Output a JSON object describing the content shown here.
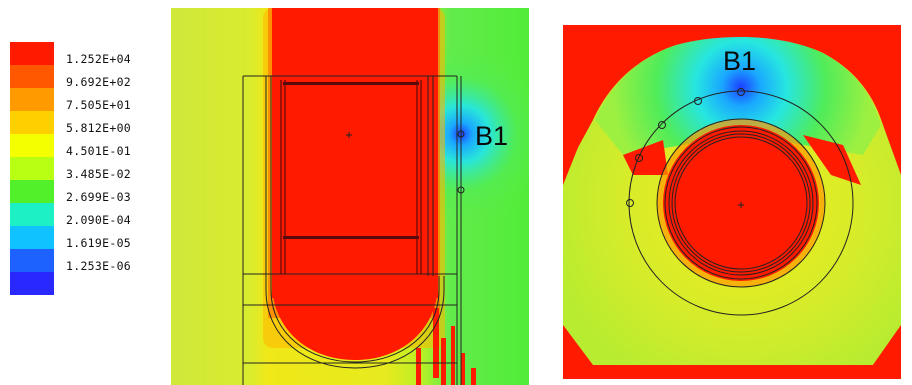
{
  "legend": {
    "colors": [
      "#ff1a00",
      "#ff5800",
      "#ff9a00",
      "#ffd000",
      "#f4ff00",
      "#b8ff14",
      "#52f02a",
      "#1cf0c4",
      "#10c2ff",
      "#1d62ff",
      "#2828ff"
    ],
    "ticks": [
      "1.252E+04",
      "9.692E+02",
      "7.505E+01",
      "5.812E+00",
      "4.501E-01",
      "3.485E-02",
      "2.699E-03",
      "2.090E-04",
      "1.619E-05",
      "1.253E-06"
    ]
  },
  "side_view": {
    "label": "B1"
  },
  "top_view": {
    "label": "B1"
  }
}
